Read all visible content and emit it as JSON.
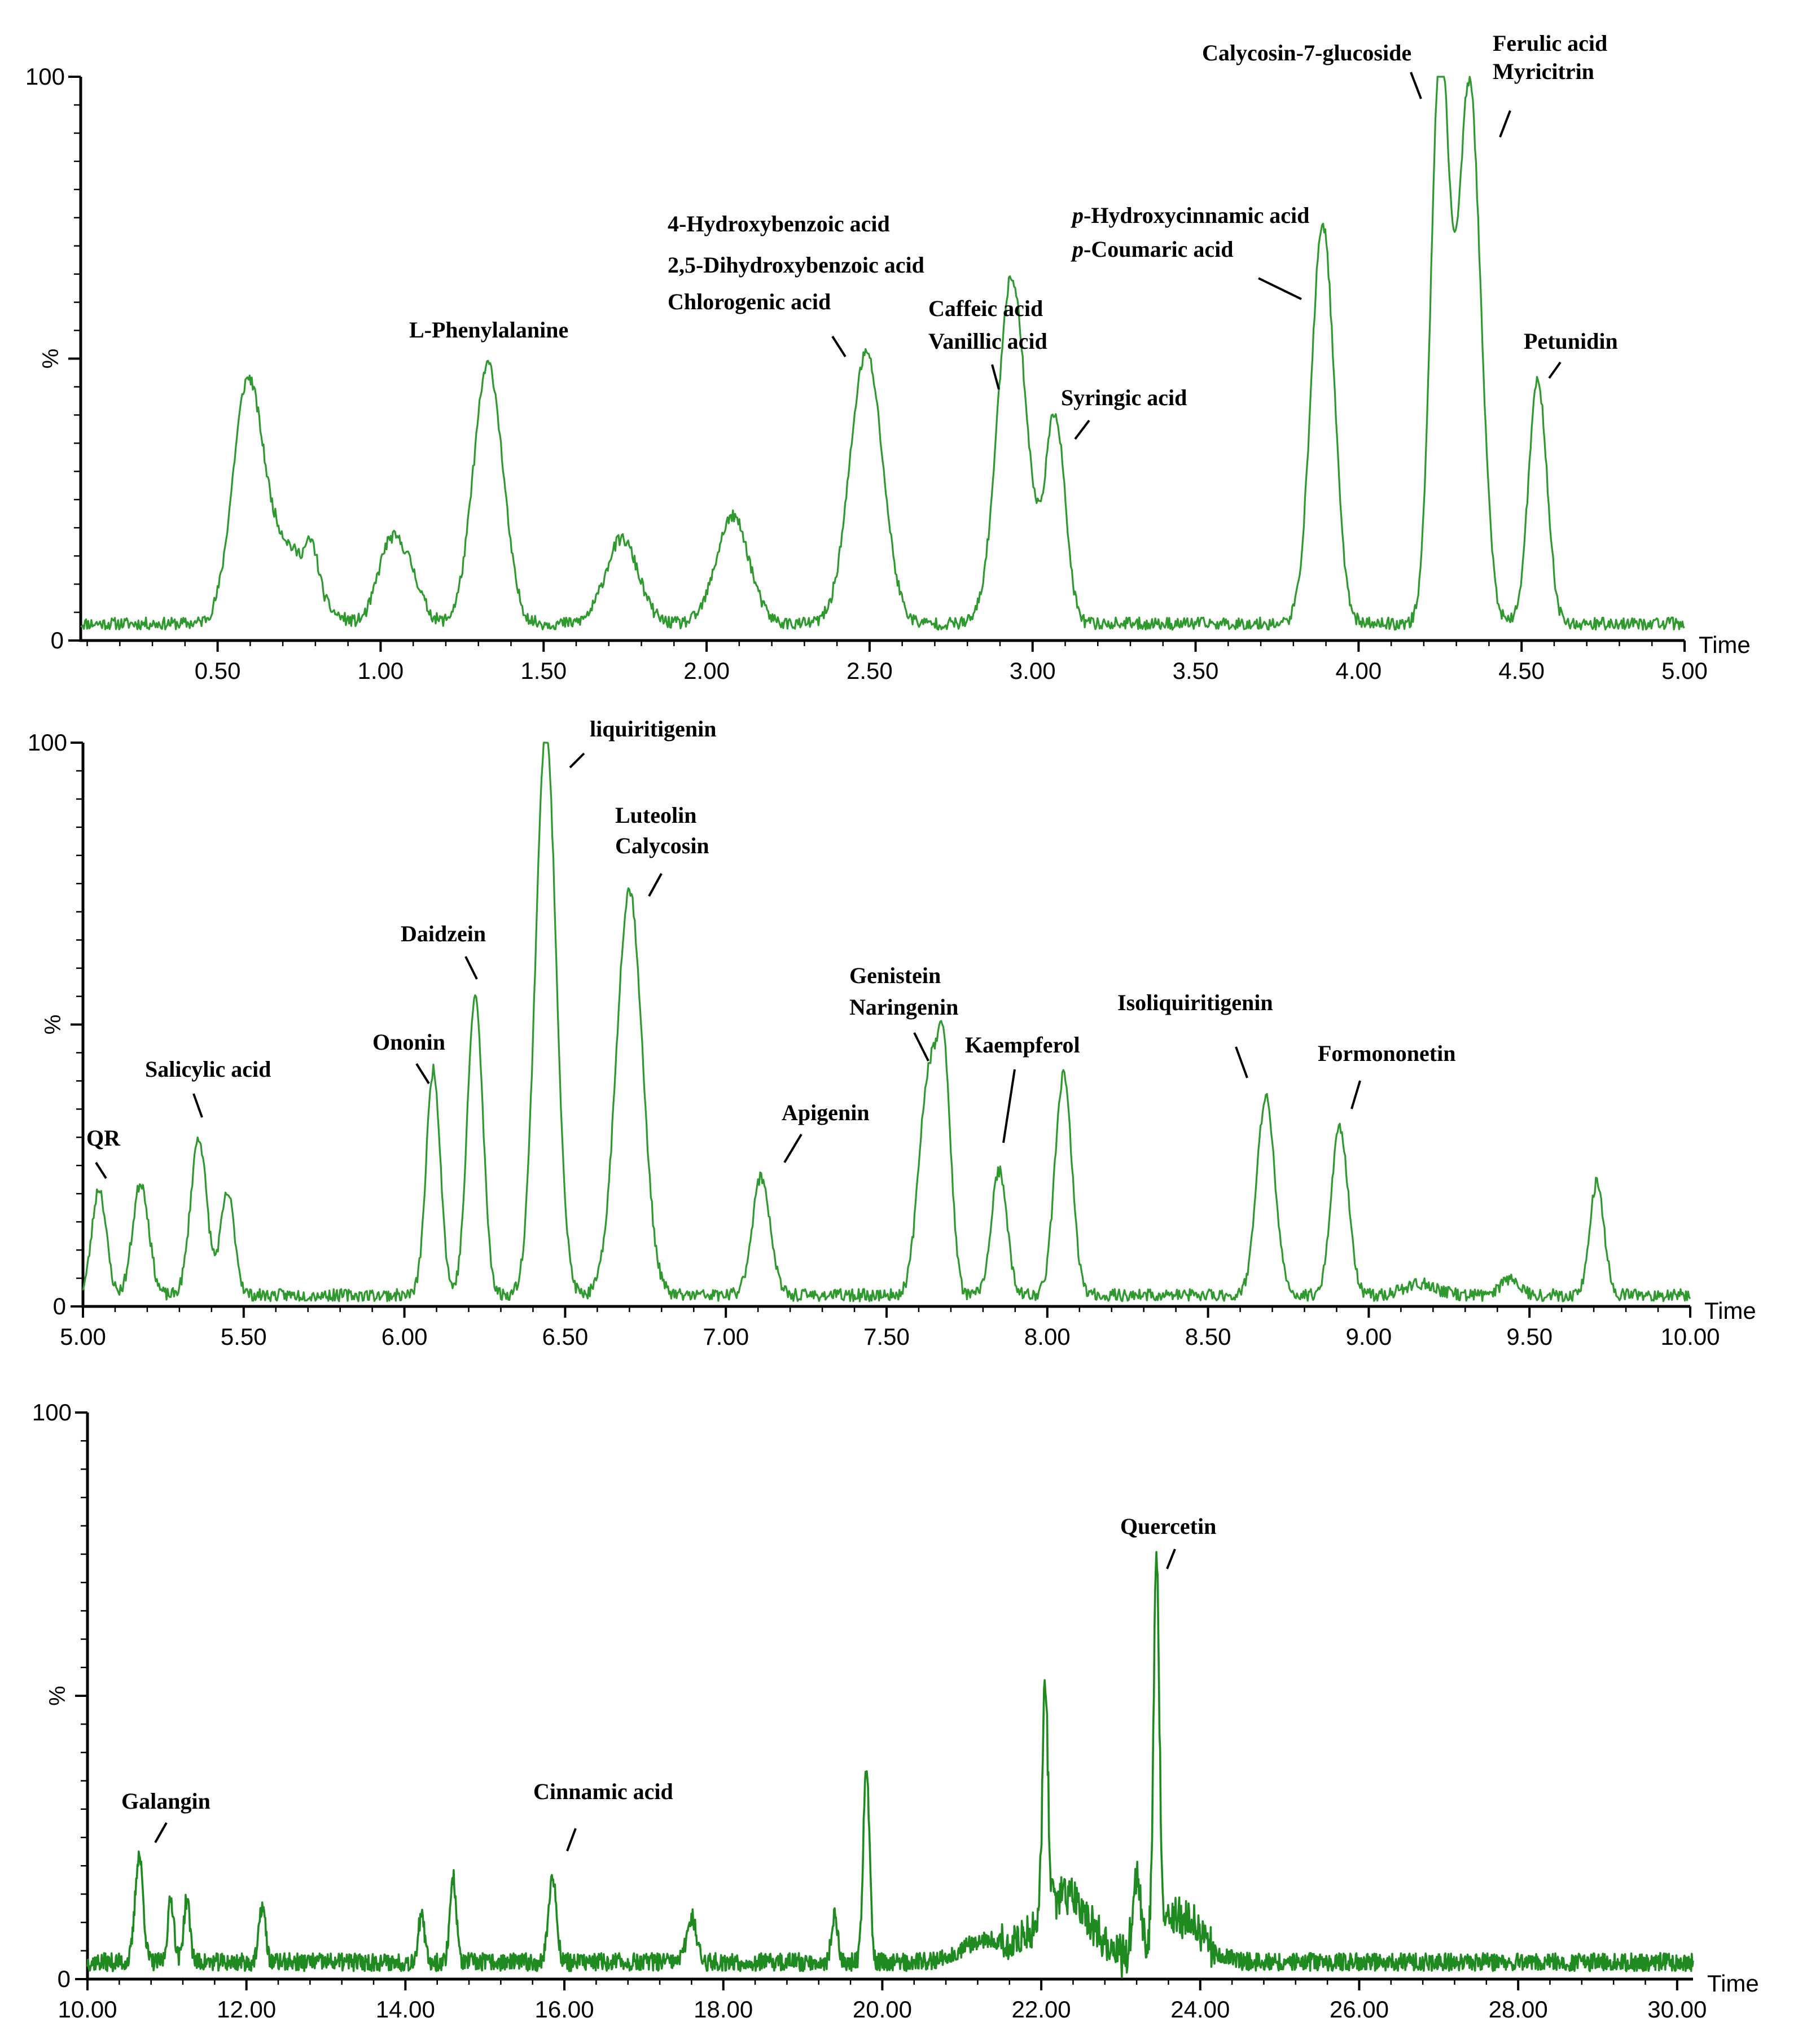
{
  "chart_data": [
    {
      "type": "line",
      "panel": 1,
      "xlabel": "Time",
      "ylabel": "%",
      "xlim": [
        0.08,
        5.0
      ],
      "ylim": [
        0,
        100
      ],
      "ytick_labels": [
        "0",
        "100"
      ],
      "xticks": [
        0.5,
        1.0,
        1.5,
        2.0,
        2.5,
        3.0,
        3.5,
        4.0,
        4.5,
        5.0
      ],
      "xtick_labels": [
        "0.50",
        "1.00",
        "1.50",
        "2.00",
        "2.50",
        "3.00",
        "3.50",
        "4.00",
        "4.50",
        "5.00"
      ],
      "baseline": 3,
      "peaks": [
        {
          "x": 0.59,
          "y": 38,
          "w": 0.045
        },
        {
          "x": 0.7,
          "y": 14,
          "w": 0.08
        },
        {
          "x": 0.79,
          "y": 7,
          "w": 0.02
        },
        {
          "x": 1.02,
          "y": 11,
          "w": 0.035
        },
        {
          "x": 1.08,
          "y": 10,
          "w": 0.04
        },
        {
          "x": 1.33,
          "y": 46,
          "w": 0.045
        },
        {
          "x": 1.74,
          "y": 15,
          "w": 0.05
        },
        {
          "x": 2.08,
          "y": 19,
          "w": 0.05
        },
        {
          "x": 2.49,
          "y": 48,
          "w": 0.05
        },
        {
          "x": 2.93,
          "y": 38,
          "w": 0.04
        },
        {
          "x": 2.95,
          "y": 25,
          "w": 0.05
        },
        {
          "x": 3.07,
          "y": 36,
          "w": 0.03
        },
        {
          "x": 3.89,
          "y": 71,
          "w": 0.035
        },
        {
          "x": 4.25,
          "y": 100,
          "w": 0.028
        },
        {
          "x": 4.34,
          "y": 96,
          "w": 0.035
        },
        {
          "x": 4.55,
          "y": 43,
          "w": 0.028
        }
      ],
      "annotations": [
        {
          "text": "L-Phenylalanine",
          "x": 1.33
        },
        {
          "text": "4-Hydroxybenzoic acid",
          "x": 2.45
        },
        {
          "text": "2,5-Dihydroxybenzoic acid",
          "x": 2.45
        },
        {
          "text": "Chlorogenic acid",
          "x": 2.45
        },
        {
          "text": "Caffeic acid",
          "x": 2.9
        },
        {
          "text": "Vanillic acid",
          "x": 2.9
        },
        {
          "text": "Syringic acid",
          "x": 3.1
        },
        {
          "text": "p-Hydroxycinnamic acid",
          "x": 3.89
        },
        {
          "text": "p-Coumaric acid",
          "x": 3.89
        },
        {
          "text": "Calycosin-7-glucoside",
          "x": 4.25
        },
        {
          "text": "Ferulic acid",
          "x": 4.34
        },
        {
          "text": "Myricitrin",
          "x": 4.34
        },
        {
          "text": "Petunidin",
          "x": 4.55
        }
      ]
    },
    {
      "type": "line",
      "panel": 2,
      "xlabel": "Time",
      "ylabel": "%",
      "xlim": [
        5.0,
        10.0
      ],
      "ylim": [
        0,
        100
      ],
      "ytick_labels": [
        "0",
        "100"
      ],
      "xticks": [
        5.0,
        5.5,
        6.0,
        6.5,
        7.0,
        7.5,
        8.0,
        8.5,
        9.0,
        9.5,
        10.0
      ],
      "xtick_labels": [
        "5.00",
        "5.50",
        "6.00",
        "6.50",
        "7.00",
        "7.50",
        "8.00",
        "8.50",
        "9.00",
        "9.50",
        "10.00"
      ],
      "baseline": 2,
      "peaks": [
        {
          "x": 5.05,
          "y": 19,
          "w": 0.022
        },
        {
          "x": 5.18,
          "y": 20,
          "w": 0.025
        },
        {
          "x": 5.36,
          "y": 28,
          "w": 0.025
        },
        {
          "x": 5.45,
          "y": 18,
          "w": 0.022
        },
        {
          "x": 6.09,
          "y": 40,
          "w": 0.022
        },
        {
          "x": 6.22,
          "y": 53,
          "w": 0.024
        },
        {
          "x": 6.44,
          "y": 100,
          "w": 0.032
        },
        {
          "x": 6.7,
          "y": 72,
          "w": 0.04
        },
        {
          "x": 7.11,
          "y": 21,
          "w": 0.028
        },
        {
          "x": 7.63,
          "y": 38,
          "w": 0.03
        },
        {
          "x": 7.68,
          "y": 36,
          "w": 0.022
        },
        {
          "x": 7.85,
          "y": 22,
          "w": 0.024
        },
        {
          "x": 8.05,
          "y": 39,
          "w": 0.026
        },
        {
          "x": 8.68,
          "y": 35,
          "w": 0.028
        },
        {
          "x": 8.91,
          "y": 30,
          "w": 0.026
        },
        {
          "x": 9.16,
          "y": 2,
          "w": 0.05
        },
        {
          "x": 9.44,
          "y": 3,
          "w": 0.03
        },
        {
          "x": 9.71,
          "y": 20,
          "w": 0.022
        }
      ],
      "annotations": [
        {
          "text": "QR",
          "x": 5.05
        },
        {
          "text": "Salicylic acid",
          "x": 5.36
        },
        {
          "text": "Ononin",
          "x": 6.09
        },
        {
          "text": "Daidzein",
          "x": 6.22
        },
        {
          "text": "liquiritigenin",
          "x": 6.44
        },
        {
          "text": "Luteolin",
          "x": 6.7
        },
        {
          "text": "Calycosin",
          "x": 6.7
        },
        {
          "text": "Apigenin",
          "x": 7.11
        },
        {
          "text": "Genistein",
          "x": 7.63
        },
        {
          "text": "Naringenin",
          "x": 7.63
        },
        {
          "text": "Kaempferol",
          "x": 7.85
        },
        {
          "text": "Isoliquiritigenin",
          "x": 8.68
        },
        {
          "text": "Formononetin",
          "x": 8.91
        }
      ]
    },
    {
      "type": "line",
      "panel": 3,
      "xlabel": "Time",
      "ylabel": "%",
      "xlim": [
        10.0,
        30.2
      ],
      "ylim": [
        0,
        100
      ],
      "ytick_labels": [
        "0",
        "100"
      ],
      "xticks": [
        10,
        12,
        14,
        16,
        18,
        20,
        22,
        24,
        26,
        28,
        30
      ],
      "xtick_labels": [
        "10.00",
        "12.00",
        "14.00",
        "16.00",
        "18.00",
        "20.00",
        "22.00",
        "24.00",
        "26.00",
        "28.00",
        "30.00"
      ],
      "baseline": 3,
      "peaks": [
        {
          "x": 10.65,
          "y": 19,
          "w": 0.05
        },
        {
          "x": 11.05,
          "y": 11,
          "w": 0.04
        },
        {
          "x": 11.25,
          "y": 11,
          "w": 0.04
        },
        {
          "x": 12.2,
          "y": 10,
          "w": 0.04
        },
        {
          "x": 14.2,
          "y": 8,
          "w": 0.04
        },
        {
          "x": 14.6,
          "y": 15,
          "w": 0.04
        },
        {
          "x": 15.85,
          "y": 15,
          "w": 0.05
        },
        {
          "x": 17.6,
          "y": 8,
          "w": 0.06
        },
        {
          "x": 19.4,
          "y": 8,
          "w": 0.04
        },
        {
          "x": 19.8,
          "y": 34,
          "w": 0.04
        },
        {
          "x": 21.3,
          "y": 4,
          "w": 0.3
        },
        {
          "x": 22.05,
          "y": 40,
          "w": 0.035
        },
        {
          "x": 22.3,
          "y": 12,
          "w": 0.3
        },
        {
          "x": 23.2,
          "y": 12,
          "w": 0.05
        },
        {
          "x": 23.45,
          "y": 67,
          "w": 0.035
        },
        {
          "x": 23.7,
          "y": 8,
          "w": 0.3
        }
      ],
      "annotations": [
        {
          "text": "Galangin",
          "x": 10.65
        },
        {
          "text": "Cinnamic acid",
          "x": 15.85
        },
        {
          "text": "Quercetin",
          "x": 23.45
        }
      ]
    }
  ]
}
